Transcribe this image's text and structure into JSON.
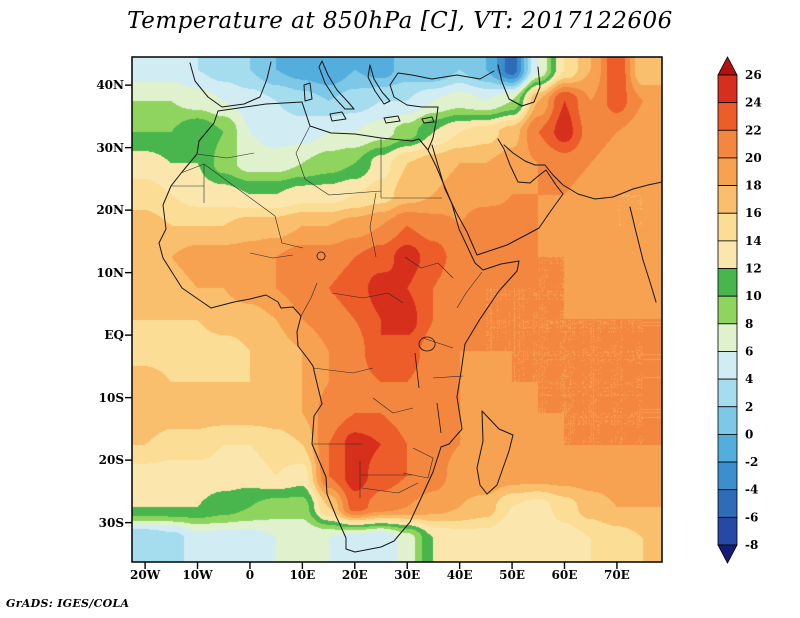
{
  "title": "Temperature at 850hPa [C], VT: 2017122606",
  "credit": "GrADS: IGES/COLA",
  "chart_data": {
    "type": "heatmap",
    "title": "Temperature at 850hPa [C], VT: 2017122606",
    "variable": "Temperature at 850hPa",
    "units": "C",
    "valid_time": "2017122606",
    "region": "Africa / Middle East",
    "grid": "off",
    "legend_position": "right-colorbar",
    "lon_range": [
      -22.5,
      78.6
    ],
    "lat_range": [
      44.5,
      -36.3
    ],
    "lon_ticks": [
      {
        "label": "20W",
        "deg": -20
      },
      {
        "label": "10W",
        "deg": -10
      },
      {
        "label": "0",
        "deg": 0
      },
      {
        "label": "10E",
        "deg": 10
      },
      {
        "label": "20E",
        "deg": 20
      },
      {
        "label": "30E",
        "deg": 30
      },
      {
        "label": "40E",
        "deg": 40
      },
      {
        "label": "50E",
        "deg": 50
      },
      {
        "label": "60E",
        "deg": 60
      },
      {
        "label": "70E",
        "deg": 70
      }
    ],
    "lat_ticks": [
      {
        "label": "40N",
        "deg": 40
      },
      {
        "label": "30N",
        "deg": 30
      },
      {
        "label": "20N",
        "deg": 20
      },
      {
        "label": "10N",
        "deg": 10
      },
      {
        "label": "EQ",
        "deg": 0
      },
      {
        "label": "10S",
        "deg": -10
      },
      {
        "label": "20S",
        "deg": -20
      },
      {
        "label": "30S",
        "deg": -30
      }
    ],
    "colorbar": {
      "levels": [
        26,
        24,
        22,
        20,
        18,
        16,
        14,
        12,
        10,
        8,
        6,
        4,
        2,
        0,
        -2,
        -4,
        -6,
        -8
      ],
      "above_color": "#b01111",
      "segment_colors": [
        "#d6301d",
        "#ec5d2a",
        "#f4873f",
        "#f6a250",
        "#f9bf6c",
        "#fcdd95",
        "#fbe7ae",
        "#48b64c",
        "#8fd45f",
        "#dff2cd",
        "#d2ecf4",
        "#a5dcee",
        "#7cc8e6",
        "#54aedd",
        "#3c8ecd",
        "#2f6cb8",
        "#2549a5"
      ],
      "below_color": "#131c77"
    },
    "grid_estimate": {
      "description": "Approximate 850hPa temperature (C) read from the shaded contours on a 5-degree grid; rows north to south",
      "lats": [
        42.5,
        37.5,
        32.5,
        27.5,
        22.5,
        17.5,
        12.5,
        7.5,
        2.5,
        -2.5,
        -7.5,
        -12.5,
        -17.5,
        -22.5,
        -27.5,
        -32.5
      ],
      "lons": [
        -20,
        -15,
        -10,
        -5,
        0,
        5,
        10,
        15,
        20,
        25,
        30,
        35,
        40,
        45,
        50,
        55,
        60,
        65,
        70,
        75
      ],
      "values_c": [
        [
          5,
          5,
          4,
          3,
          2,
          0,
          -1,
          -2,
          0,
          -1,
          1,
          0,
          2,
          0,
          -5,
          6,
          14,
          18,
          24,
          16
        ],
        [
          8,
          8,
          7,
          6,
          5,
          4,
          3,
          2,
          3,
          4,
          4,
          6,
          7,
          6,
          8,
          18,
          24,
          20,
          23,
          20
        ],
        [
          10,
          10,
          12,
          10,
          6,
          5,
          5,
          6,
          6,
          7,
          9,
          12,
          14,
          15,
          17,
          22,
          25,
          21,
          20,
          19
        ],
        [
          13,
          12,
          12,
          9,
          7,
          7,
          8,
          9,
          10,
          13,
          16,
          17,
          18,
          18,
          19,
          20,
          21,
          20,
          19,
          18
        ],
        [
          15,
          14,
          13,
          13,
          12,
          12,
          13,
          13,
          14,
          15,
          17,
          18,
          19,
          19,
          20,
          20,
          20,
          19,
          18,
          18
        ],
        [
          17,
          16,
          16,
          16,
          17,
          17,
          18,
          18,
          19,
          20,
          22,
          21,
          20,
          22,
          21,
          20,
          19,
          19,
          18,
          18
        ],
        [
          18,
          18,
          19,
          19,
          19,
          20,
          21,
          21,
          22,
          23,
          25,
          23,
          21,
          22,
          21,
          20,
          20,
          19,
          19,
          19
        ],
        [
          17,
          17,
          18,
          18,
          19,
          20,
          21,
          22,
          23,
          25,
          24,
          22,
          20,
          20,
          20,
          20,
          20,
          19,
          19,
          19
        ],
        [
          16,
          16,
          16,
          17,
          17,
          18,
          20,
          21,
          22,
          24,
          25,
          22,
          21,
          20,
          20,
          20,
          20,
          20,
          20,
          20
        ],
        [
          15,
          15,
          15,
          15,
          16,
          17,
          18,
          20,
          21,
          24,
          23,
          21,
          20,
          20,
          20,
          20,
          20,
          20,
          20,
          20
        ],
        [
          17,
          16,
          16,
          16,
          16,
          17,
          18,
          20,
          21,
          22,
          22,
          21,
          20,
          19,
          20,
          20,
          20,
          20,
          20,
          20
        ],
        [
          18,
          17,
          17,
          17,
          17,
          17,
          18,
          21,
          22,
          22,
          21,
          21,
          20,
          19,
          19,
          20,
          20,
          20,
          20,
          20
        ],
        [
          16,
          15,
          15,
          14,
          14,
          15,
          16,
          22,
          25,
          24,
          22,
          21,
          20,
          19,
          19,
          19,
          20,
          20,
          20,
          20
        ],
        [
          13,
          13,
          13,
          13,
          13,
          14,
          13,
          22,
          25,
          23,
          22,
          21,
          19,
          20,
          19,
          19,
          19,
          19,
          19,
          19
        ],
        [
          12,
          12,
          12,
          11,
          10,
          9,
          9,
          16,
          23,
          21,
          20,
          19,
          18,
          17,
          14,
          13,
          15,
          17,
          18,
          18
        ],
        [
          2,
          3,
          5,
          5,
          5,
          6,
          6,
          6,
          5,
          4,
          7,
          12,
          13,
          13,
          12,
          12,
          13,
          14,
          15,
          16
        ]
      ]
    }
  }
}
